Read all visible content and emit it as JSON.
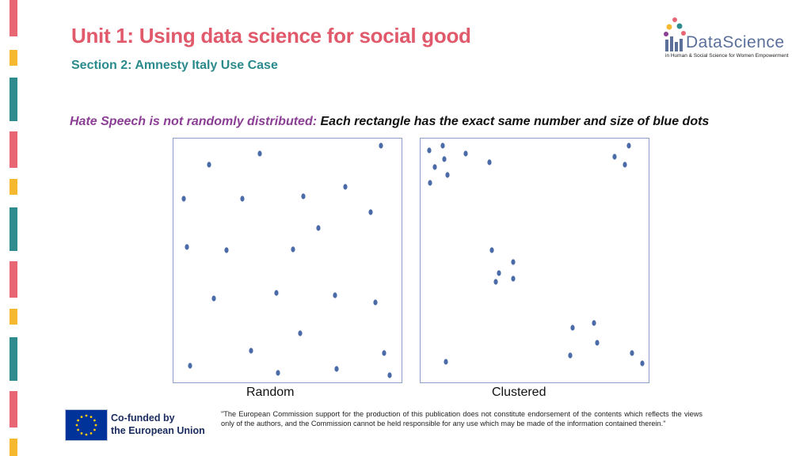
{
  "header": {
    "title": "Unit 1: Using data science for social good",
    "subtitle": "Section 2: Amnesty Italy Use Case"
  },
  "logo": {
    "name": "DataScience",
    "tagline": "in Human & Social Science for Women Empowerment"
  },
  "headline": {
    "lead": "Hate Speech is not randomly distributed:",
    "rest": " Each rectangle has the exact same number and size of blue dots"
  },
  "panels": {
    "random_label": "Random",
    "clustered_label": "Clustered"
  },
  "footer": {
    "eu_line1": "Co-funded by",
    "eu_line2": "the European Union",
    "disclaimer": "\"The European Commission support for the production of this publication does not constitute endorsement of the contents which reflects the views only of the authors, and the Commission cannot be held responsible for any use which may be made of the information contained therein.\""
  },
  "colors": {
    "title": "#e05a6b",
    "subtitle": "#2b8a8c",
    "headline_lead": "#8b3f95",
    "headline_rest": "#111111",
    "dot": "#4a6aa8",
    "bar_red": "#e86673",
    "bar_yellow": "#f5b82e",
    "bar_teal": "#2e8b8e"
  }
}
